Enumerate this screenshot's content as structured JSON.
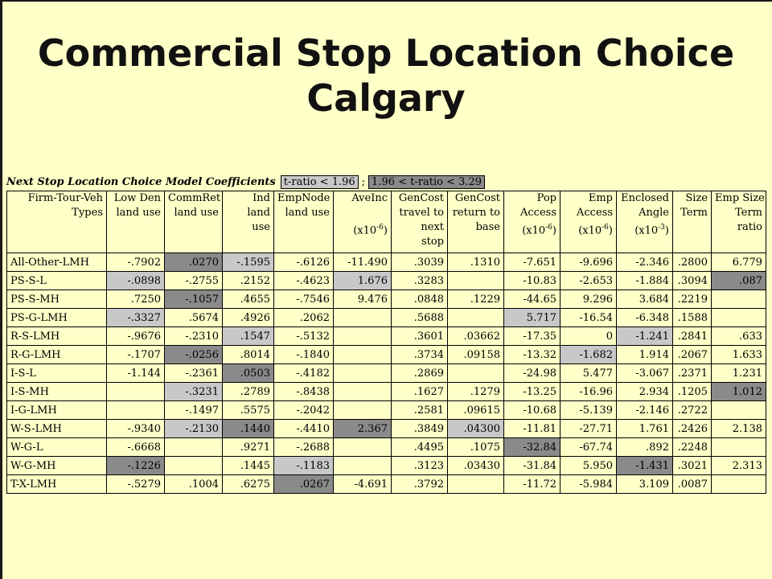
{
  "title_line1": "Commercial Stop Location Choice",
  "title_line2": "Calgary",
  "heading": {
    "text": "Next Stop Location Choice Model Coefficients",
    "key1": "t-ratio < 1.96",
    "sep": ";",
    "key2": "1.96 < t-ratio < 3.29"
  },
  "columns": [
    [
      "Firm-Tour-Veh",
      "Types"
    ],
    [
      "Low Den",
      "land use"
    ],
    [
      "CommRet",
      "land use"
    ],
    [
      "Ind",
      "land",
      "use"
    ],
    [
      "EmpNode",
      "land use"
    ],
    [
      "AveInc",
      "",
      "(x10-6)"
    ],
    [
      "GenCost",
      "travel to",
      "next",
      "stop"
    ],
    [
      "GenCost",
      "return to",
      "base"
    ],
    [
      "Pop",
      "Access",
      "(x10-6)"
    ],
    [
      "Emp",
      "Access",
      "(x10-6)"
    ],
    [
      "Enclosed",
      "Angle",
      "(x10-3)"
    ],
    [
      "Size",
      "Term"
    ],
    [
      "Emp Size",
      "Term",
      "ratio"
    ]
  ],
  "rows": [
    {
      "type": "All-Other-LMH",
      "values": [
        "-.7902",
        ".0270",
        "-.1595",
        "-.6126",
        "-11.490",
        ".3039",
        ".1310",
        "-7.651",
        "-9.696",
        "-2.346",
        ".2800",
        "6.779"
      ],
      "shade": [
        0,
        2,
        1,
        0,
        0,
        0,
        0,
        0,
        0,
        0,
        0,
        0
      ]
    },
    {
      "type": "PS-S-L",
      "values": [
        "-.0898",
        "-.2755",
        ".2152",
        "-.4623",
        "1.676",
        ".3283",
        "",
        "-10.83",
        "-2.653",
        "-1.884",
        ".3094",
        ".087"
      ],
      "shade": [
        1,
        0,
        0,
        0,
        1,
        0,
        0,
        0,
        0,
        0,
        0,
        2
      ]
    },
    {
      "type": "PS-S-MH",
      "values": [
        ".7250",
        "-.1057",
        ".4655",
        "-.7546",
        "9.476",
        ".0848",
        ".1229",
        "-44.65",
        "9.296",
        "3.684",
        ".2219",
        ""
      ],
      "shade": [
        0,
        2,
        0,
        0,
        0,
        0,
        0,
        0,
        0,
        0,
        0,
        0
      ]
    },
    {
      "type": "PS-G-LMH",
      "values": [
        "-.3327",
        ".5674",
        ".4926",
        ".2062",
        "",
        ".5688",
        "",
        "5.717",
        "-16.54",
        "-6.348",
        ".1588",
        ""
      ],
      "shade": [
        1,
        0,
        0,
        0,
        0,
        0,
        0,
        1,
        0,
        0,
        0,
        0
      ]
    },
    {
      "type": "R-S-LMH",
      "values": [
        "-.9676",
        "-.2310",
        ".1547",
        "-.5132",
        "",
        ".3601",
        ".03662",
        "-17.35",
        "0",
        "-1.241",
        ".2841",
        ".633"
      ],
      "shade": [
        0,
        0,
        1,
        0,
        0,
        0,
        0,
        0,
        0,
        1,
        0,
        0
      ]
    },
    {
      "type": "R-G-LMH",
      "values": [
        "-.1707",
        "-.0256",
        ".8014",
        "-.1840",
        "",
        ".3734",
        ".09158",
        "-13.32",
        "-1.682",
        "1.914",
        ".2067",
        "1.633"
      ],
      "shade": [
        0,
        2,
        0,
        0,
        0,
        0,
        0,
        0,
        1,
        0,
        0,
        0
      ]
    },
    {
      "type": "I-S-L",
      "values": [
        "-1.144",
        "-.2361",
        ".0503",
        "-.4182",
        "",
        ".2869",
        "",
        "-24.98",
        "5.477",
        "-3.067",
        ".2371",
        "1.231"
      ],
      "shade": [
        0,
        0,
        2,
        0,
        0,
        0,
        0,
        0,
        0,
        0,
        0,
        0
      ]
    },
    {
      "type": "I-S-MH",
      "values": [
        "",
        "-.3231",
        ".2789",
        "-.8438",
        "",
        ".1627",
        ".1279",
        "-13.25",
        "-16.96",
        "2.934",
        ".1205",
        "1.012"
      ],
      "shade": [
        0,
        1,
        0,
        0,
        0,
        0,
        0,
        0,
        0,
        0,
        0,
        2
      ]
    },
    {
      "type": "I-G-LMH",
      "values": [
        "",
        "-.1497",
        ".5575",
        "-.2042",
        "",
        ".2581",
        ".09615",
        "-10.68",
        "-5.139",
        "-2.146",
        ".2722",
        ""
      ],
      "shade": [
        0,
        0,
        0,
        0,
        0,
        0,
        0,
        0,
        0,
        0,
        0,
        0
      ]
    },
    {
      "type": "W-S-LMH",
      "values": [
        "-.9340",
        "-.2130",
        ".1440",
        "-.4410",
        "2.367",
        ".3849",
        ".04300",
        "-11.81",
        "-27.71",
        "1.761",
        ".2426",
        "2.138"
      ],
      "shade": [
        0,
        1,
        2,
        0,
        2,
        0,
        1,
        0,
        0,
        0,
        0,
        0
      ]
    },
    {
      "type": "W-G-L",
      "values": [
        "-.6668",
        "",
        ".9271",
        "-.2688",
        "",
        ".4495",
        ".1075",
        "-32.84",
        "-67.74",
        ".892",
        ".2248",
        ""
      ],
      "shade": [
        0,
        0,
        0,
        0,
        0,
        0,
        0,
        2,
        0,
        0,
        0,
        0
      ]
    },
    {
      "type": "W-G-MH",
      "values": [
        "-.1226",
        "",
        ".1445",
        "-.1183",
        "",
        ".3123",
        ".03430",
        "-31.84",
        "5.950",
        "-1.431",
        ".3021",
        "2.313"
      ],
      "shade": [
        2,
        0,
        0,
        1,
        0,
        0,
        0,
        0,
        0,
        2,
        0,
        0
      ]
    },
    {
      "type": "T-X-LMH",
      "values": [
        "-.5279",
        ".1004",
        ".6275",
        ".0267",
        "-4.691",
        ".3792",
        "",
        "-11.72",
        "-5.984",
        "3.109",
        ".0087",
        ""
      ],
      "shade": [
        0,
        0,
        0,
        2,
        0,
        0,
        0,
        0,
        0,
        0,
        0,
        0
      ]
    }
  ]
}
